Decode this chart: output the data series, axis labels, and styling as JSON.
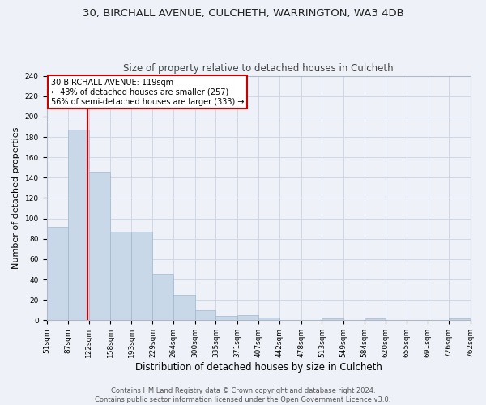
{
  "title1": "30, BIRCHALL AVENUE, CULCHETH, WARRINGTON, WA3 4DB",
  "title2": "Size of property relative to detached houses in Culcheth",
  "xlabel": "Distribution of detached houses by size in Culcheth",
  "ylabel": "Number of detached properties",
  "bar_edges": [
    51,
    87,
    122,
    158,
    193,
    229,
    264,
    300,
    335,
    371,
    407,
    442,
    478,
    513,
    549,
    584,
    620,
    655,
    691,
    726,
    762
  ],
  "bar_heights": [
    92,
    187,
    146,
    87,
    87,
    46,
    25,
    10,
    4,
    5,
    3,
    0,
    0,
    2,
    0,
    2,
    0,
    0,
    0,
    2
  ],
  "bar_color": "#c8d8e8",
  "bar_edge_color": "#a0b8cc",
  "grid_color": "#d0d8e8",
  "bg_color": "#eef2f8",
  "vline_x": 119,
  "vline_color": "#cc0000",
  "annotation_text": "30 BIRCHALL AVENUE: 119sqm\n← 43% of detached houses are smaller (257)\n56% of semi-detached houses are larger (333) →",
  "annotation_box_color": "#ffffff",
  "annotation_box_edge": "#cc0000",
  "ylim": [
    0,
    240
  ],
  "yticks": [
    0,
    20,
    40,
    60,
    80,
    100,
    120,
    140,
    160,
    180,
    200,
    220,
    240
  ],
  "tick_labels": [
    "51sqm",
    "87sqm",
    "122sqm",
    "158sqm",
    "193sqm",
    "229sqm",
    "264sqm",
    "300sqm",
    "335sqm",
    "371sqm",
    "407sqm",
    "442sqm",
    "478sqm",
    "513sqm",
    "549sqm",
    "584sqm",
    "620sqm",
    "655sqm",
    "691sqm",
    "726sqm",
    "762sqm"
  ],
  "footer": "Contains HM Land Registry data © Crown copyright and database right 2024.\nContains public sector information licensed under the Open Government Licence v3.0.",
  "title1_fontsize": 9.5,
  "title2_fontsize": 8.5,
  "axis_label_fontsize": 8,
  "tick_fontsize": 6.5,
  "footer_fontsize": 6,
  "annot_fontsize": 7
}
